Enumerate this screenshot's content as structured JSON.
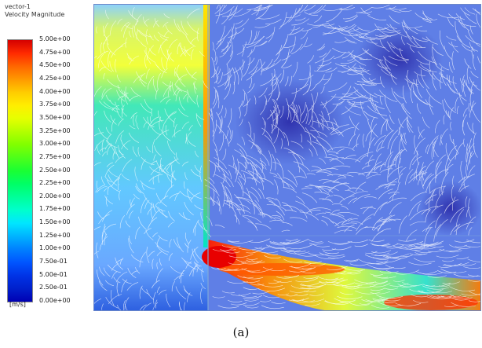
{
  "legend": {
    "title_line1": "vector-1",
    "title_line2": "Velocity Magnitude",
    "unit": "[m/s]",
    "ticks": [
      "5.00e+00",
      "4.75e+00",
      "4.50e+00",
      "4.25e+00",
      "4.00e+00",
      "3.75e+00",
      "3.50e+00",
      "3.25e+00",
      "3.00e+00",
      "2.75e+00",
      "2.50e+00",
      "2.25e+00",
      "2.00e+00",
      "1.75e+00",
      "1.50e+00",
      "1.25e+00",
      "1.00e+00",
      "7.50e-01",
      "5.00e-01",
      "2.50e-01",
      "0.00e+00"
    ],
    "colors": [
      "#d40000",
      "#ff2a00",
      "#ff6600",
      "#ff9900",
      "#ffcc00",
      "#ffee00",
      "#e6ff00",
      "#b3ff00",
      "#80ff00",
      "#4dff1a",
      "#1aff33",
      "#00ff66",
      "#00ff99",
      "#00ffcc",
      "#00e6ff",
      "#00b3ff",
      "#0080ff",
      "#0055ff",
      "#0033e6",
      "#0020cc",
      "#0000b3"
    ]
  },
  "caption": "(a)"
}
